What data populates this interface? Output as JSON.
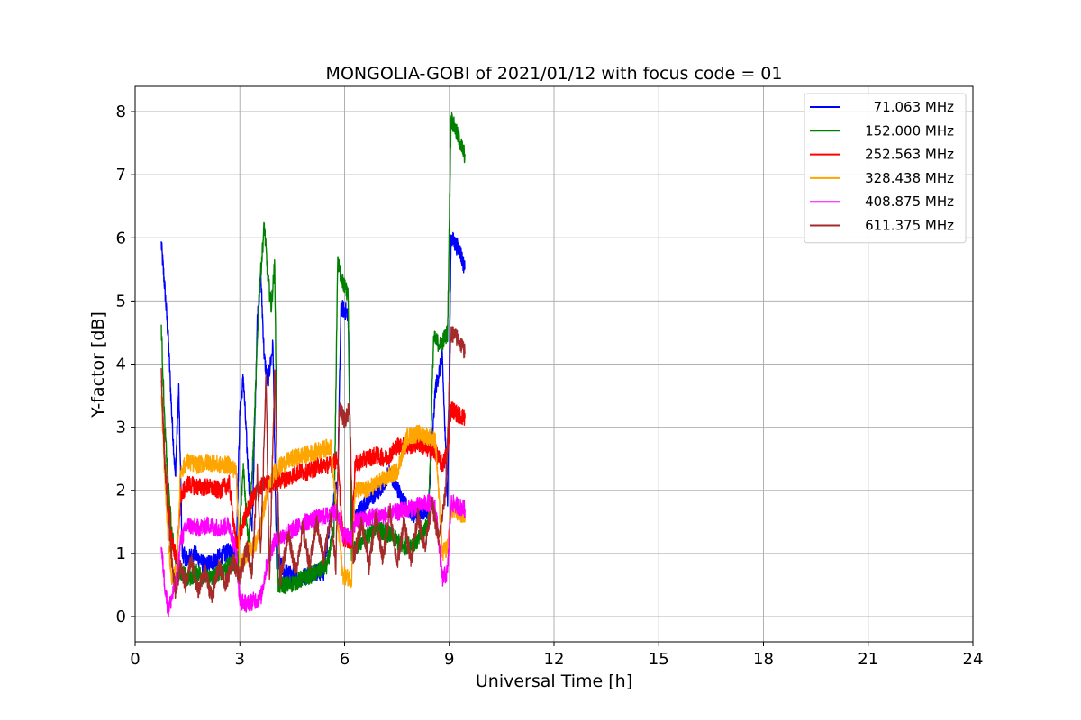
{
  "chart_data": {
    "type": "line",
    "title": "MONGOLIA-GOBI of 2021/01/12 with focus code = 01",
    "xlabel": "Universal Time [h]",
    "ylabel": "Y-factor [dB]",
    "xlim": [
      0,
      24
    ],
    "ylim": [
      -0.4,
      8.4
    ],
    "xticks": [
      0,
      3,
      6,
      9,
      12,
      15,
      18,
      21,
      24
    ],
    "yticks": [
      0,
      1,
      2,
      3,
      4,
      5,
      6,
      7,
      8
    ],
    "grid": true,
    "legend_position": "top-right",
    "series": [
      {
        "name": " 71.063 MHz",
        "color": "#0000ff",
        "points": [
          [
            0.75,
            5.9
          ],
          [
            0.85,
            5.2
          ],
          [
            0.95,
            4.4
          ],
          [
            1.05,
            3.2
          ],
          [
            1.15,
            2.2
          ],
          [
            1.25,
            3.6
          ],
          [
            1.35,
            1.0
          ],
          [
            1.5,
            0.9
          ],
          [
            1.7,
            1.0
          ],
          [
            2.0,
            0.8
          ],
          [
            2.3,
            0.9
          ],
          [
            2.6,
            1.0
          ],
          [
            2.9,
            1.1
          ],
          [
            3.0,
            3.2
          ],
          [
            3.1,
            3.8
          ],
          [
            3.2,
            2.7
          ],
          [
            3.35,
            1.3
          ],
          [
            3.5,
            4.7
          ],
          [
            3.6,
            5.4
          ],
          [
            3.7,
            4.1
          ],
          [
            3.8,
            3.7
          ],
          [
            3.95,
            4.3
          ],
          [
            4.05,
            0.9
          ],
          [
            4.3,
            0.7
          ],
          [
            4.7,
            0.6
          ],
          [
            5.1,
            0.7
          ],
          [
            5.4,
            0.7
          ],
          [
            5.6,
            1.6
          ],
          [
            5.8,
            2.1
          ],
          [
            5.9,
            4.9
          ],
          [
            6.1,
            4.8
          ],
          [
            6.2,
            1.5
          ],
          [
            6.6,
            1.8
          ],
          [
            7.0,
            2.0
          ],
          [
            7.3,
            2.3
          ],
          [
            7.7,
            1.8
          ],
          [
            8.0,
            1.6
          ],
          [
            8.4,
            1.7
          ],
          [
            8.6,
            3.6
          ],
          [
            8.8,
            4.1
          ],
          [
            8.95,
            1.8
          ],
          [
            9.05,
            6.0
          ],
          [
            9.3,
            5.8
          ],
          [
            9.45,
            5.5
          ]
        ]
      },
      {
        "name": "152.000 MHz",
        "color": "#008000",
        "points": [
          [
            0.75,
            4.6
          ],
          [
            0.85,
            3.0
          ],
          [
            0.95,
            2.1
          ],
          [
            1.05,
            1.3
          ],
          [
            1.2,
            0.8
          ],
          [
            1.5,
            0.6
          ],
          [
            1.8,
            0.7
          ],
          [
            2.1,
            0.6
          ],
          [
            2.4,
            0.7
          ],
          [
            2.7,
            0.8
          ],
          [
            2.95,
            0.9
          ],
          [
            3.1,
            2.4
          ],
          [
            3.25,
            1.1
          ],
          [
            3.4,
            2.8
          ],
          [
            3.55,
            5.1
          ],
          [
            3.7,
            6.2
          ],
          [
            3.8,
            5.4
          ],
          [
            3.9,
            4.9
          ],
          [
            4.0,
            5.6
          ],
          [
            4.1,
            0.5
          ],
          [
            4.4,
            0.5
          ],
          [
            4.8,
            0.6
          ],
          [
            5.2,
            0.7
          ],
          [
            5.5,
            0.8
          ],
          [
            5.7,
            1.4
          ],
          [
            5.8,
            5.6
          ],
          [
            5.95,
            5.3
          ],
          [
            6.1,
            5.1
          ],
          [
            6.2,
            1.0
          ],
          [
            6.5,
            1.2
          ],
          [
            6.9,
            1.4
          ],
          [
            7.3,
            1.3
          ],
          [
            7.7,
            1.1
          ],
          [
            8.1,
            1.2
          ],
          [
            8.4,
            1.5
          ],
          [
            8.55,
            4.4
          ],
          [
            8.75,
            4.3
          ],
          [
            8.95,
            4.5
          ],
          [
            9.05,
            7.9
          ],
          [
            9.25,
            7.6
          ],
          [
            9.45,
            7.3
          ]
        ]
      },
      {
        "name": "252.563 MHz",
        "color": "#ff0000",
        "points": [
          [
            0.75,
            3.7
          ],
          [
            0.85,
            2.5
          ],
          [
            0.95,
            1.8
          ],
          [
            1.05,
            1.2
          ],
          [
            1.2,
            0.9
          ],
          [
            1.3,
            1.9
          ],
          [
            1.5,
            2.1
          ],
          [
            1.8,
            2.05
          ],
          [
            2.1,
            2.05
          ],
          [
            2.4,
            2.0
          ],
          [
            2.7,
            2.1
          ],
          [
            2.9,
            1.1
          ],
          [
            3.1,
            1.5
          ],
          [
            3.3,
            1.8
          ],
          [
            3.5,
            2.0
          ],
          [
            3.7,
            2.1
          ],
          [
            3.9,
            2.1
          ],
          [
            4.1,
            2.15
          ],
          [
            4.4,
            2.2
          ],
          [
            4.7,
            2.3
          ],
          [
            5.0,
            2.3
          ],
          [
            5.3,
            2.4
          ],
          [
            5.6,
            2.4
          ],
          [
            5.8,
            2.5
          ],
          [
            5.95,
            1.25
          ],
          [
            6.2,
            1.2
          ],
          [
            6.3,
            2.4
          ],
          [
            6.6,
            2.5
          ],
          [
            6.9,
            2.55
          ],
          [
            7.2,
            2.5
          ],
          [
            7.5,
            2.7
          ],
          [
            7.8,
            2.7
          ],
          [
            8.1,
            2.75
          ],
          [
            8.4,
            2.65
          ],
          [
            8.6,
            2.6
          ],
          [
            8.8,
            2.4
          ],
          [
            8.95,
            2.6
          ],
          [
            9.05,
            3.3
          ],
          [
            9.25,
            3.2
          ],
          [
            9.45,
            3.15
          ]
        ]
      },
      {
        "name": "328.438 MHz",
        "color": "#ffa500",
        "points": [
          [
            0.75,
            3.5
          ],
          [
            0.85,
            2.2
          ],
          [
            0.95,
            1.2
          ],
          [
            1.05,
            0.6
          ],
          [
            1.2,
            0.7
          ],
          [
            1.3,
            2.3
          ],
          [
            1.5,
            2.45
          ],
          [
            1.8,
            2.4
          ],
          [
            2.1,
            2.45
          ],
          [
            2.4,
            2.4
          ],
          [
            2.7,
            2.4
          ],
          [
            2.9,
            2.3
          ],
          [
            3.0,
            0.8
          ],
          [
            3.2,
            1.0
          ],
          [
            3.5,
            1.2
          ],
          [
            3.8,
            2.0
          ],
          [
            4.0,
            2.3
          ],
          [
            4.2,
            2.4
          ],
          [
            4.5,
            2.5
          ],
          [
            4.8,
            2.55
          ],
          [
            5.1,
            2.6
          ],
          [
            5.4,
            2.65
          ],
          [
            5.6,
            2.7
          ],
          [
            5.75,
            1.8
          ],
          [
            5.95,
            0.65
          ],
          [
            6.2,
            0.6
          ],
          [
            6.3,
            2.0
          ],
          [
            6.6,
            2.0
          ],
          [
            6.9,
            2.1
          ],
          [
            7.2,
            2.2
          ],
          [
            7.5,
            2.3
          ],
          [
            7.8,
            2.85
          ],
          [
            8.1,
            2.9
          ],
          [
            8.4,
            2.85
          ],
          [
            8.6,
            2.8
          ],
          [
            8.8,
            1.0
          ],
          [
            8.95,
            1.1
          ],
          [
            9.05,
            1.7
          ],
          [
            9.25,
            1.65
          ],
          [
            9.45,
            1.6
          ]
        ]
      },
      {
        "name": "408.875 MHz",
        "color": "#ff00ff",
        "points": [
          [
            0.75,
            1.1
          ],
          [
            0.85,
            0.5
          ],
          [
            0.95,
            0.1
          ],
          [
            1.05,
            0.3
          ],
          [
            1.2,
            0.6
          ],
          [
            1.3,
            1.2
          ],
          [
            1.5,
            1.45
          ],
          [
            1.8,
            1.4
          ],
          [
            2.1,
            1.45
          ],
          [
            2.4,
            1.4
          ],
          [
            2.7,
            1.45
          ],
          [
            2.9,
            1.0
          ],
          [
            3.0,
            0.25
          ],
          [
            3.2,
            0.2
          ],
          [
            3.4,
            0.25
          ],
          [
            3.6,
            0.3
          ],
          [
            3.8,
            0.9
          ],
          [
            4.0,
            1.2
          ],
          [
            4.3,
            1.3
          ],
          [
            4.6,
            1.4
          ],
          [
            4.9,
            1.5
          ],
          [
            5.2,
            1.55
          ],
          [
            5.5,
            1.6
          ],
          [
            5.8,
            1.65
          ],
          [
            5.95,
            1.3
          ],
          [
            6.2,
            1.25
          ],
          [
            6.3,
            1.5
          ],
          [
            6.6,
            1.55
          ],
          [
            6.9,
            1.6
          ],
          [
            7.2,
            1.6
          ],
          [
            7.5,
            1.65
          ],
          [
            7.8,
            1.7
          ],
          [
            8.1,
            1.75
          ],
          [
            8.4,
            1.8
          ],
          [
            8.6,
            1.75
          ],
          [
            8.8,
            0.6
          ],
          [
            8.95,
            0.7
          ],
          [
            9.05,
            1.8
          ],
          [
            9.25,
            1.75
          ],
          [
            9.45,
            1.7
          ]
        ]
      },
      {
        "name": "611.375 MHz",
        "color": "#a52a2a",
        "points": [
          [
            0.75,
            3.8
          ],
          [
            0.85,
            2.4
          ],
          [
            0.95,
            1.6
          ],
          [
            1.05,
            0.9
          ],
          [
            1.15,
            0.4
          ],
          [
            1.3,
            0.8
          ],
          [
            1.45,
            0.5
          ],
          [
            1.6,
            0.9
          ],
          [
            1.8,
            0.4
          ],
          [
            2.0,
            0.7
          ],
          [
            2.2,
            0.3
          ],
          [
            2.4,
            0.8
          ],
          [
            2.6,
            0.5
          ],
          [
            2.8,
            0.9
          ],
          [
            3.0,
            0.6
          ],
          [
            3.2,
            1.1
          ],
          [
            3.35,
            0.7
          ],
          [
            3.5,
            2.3
          ],
          [
            3.6,
            1.0
          ],
          [
            3.75,
            3.8
          ],
          [
            3.85,
            0.6
          ],
          [
            4.0,
            3.9
          ],
          [
            4.15,
            0.6
          ],
          [
            4.4,
            1.3
          ],
          [
            4.6,
            0.7
          ],
          [
            4.8,
            1.4
          ],
          [
            5.0,
            0.8
          ],
          [
            5.2,
            1.5
          ],
          [
            5.4,
            0.9
          ],
          [
            5.6,
            1.6
          ],
          [
            5.75,
            0.8
          ],
          [
            5.85,
            3.3
          ],
          [
            6.0,
            3.1
          ],
          [
            6.15,
            3.3
          ],
          [
            6.25,
            0.9
          ],
          [
            6.5,
            1.5
          ],
          [
            6.7,
            0.8
          ],
          [
            6.9,
            1.6
          ],
          [
            7.1,
            0.9
          ],
          [
            7.3,
            1.7
          ],
          [
            7.5,
            0.8
          ],
          [
            7.7,
            1.5
          ],
          [
            7.9,
            0.9
          ],
          [
            8.1,
            1.6
          ],
          [
            8.3,
            1.1
          ],
          [
            8.5,
            1.8
          ],
          [
            8.7,
            1.2
          ],
          [
            8.9,
            2.0
          ],
          [
            9.05,
            4.5
          ],
          [
            9.25,
            4.4
          ],
          [
            9.45,
            4.2
          ]
        ]
      }
    ]
  }
}
